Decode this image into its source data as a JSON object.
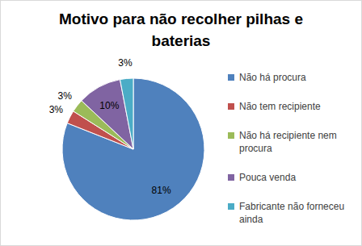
{
  "chart_data": {
    "type": "pie",
    "title": "Motivo para não recolher pilhas e baterias",
    "categories": [
      "Não há procura",
      "Não tem recipiente",
      "Não há recipiente nem procura",
      "Pouca venda",
      "Fabricante não forneceu ainda"
    ],
    "values": [
      81,
      3,
      3,
      10,
      3
    ],
    "value_labels": [
      "81%",
      "3%",
      "3%",
      "10%",
      "3%"
    ],
    "colors": [
      "#4f81bd",
      "#c0504d",
      "#9bbb59",
      "#8064a2",
      "#4bacc6"
    ],
    "data_labels": true,
    "legend": "right"
  }
}
